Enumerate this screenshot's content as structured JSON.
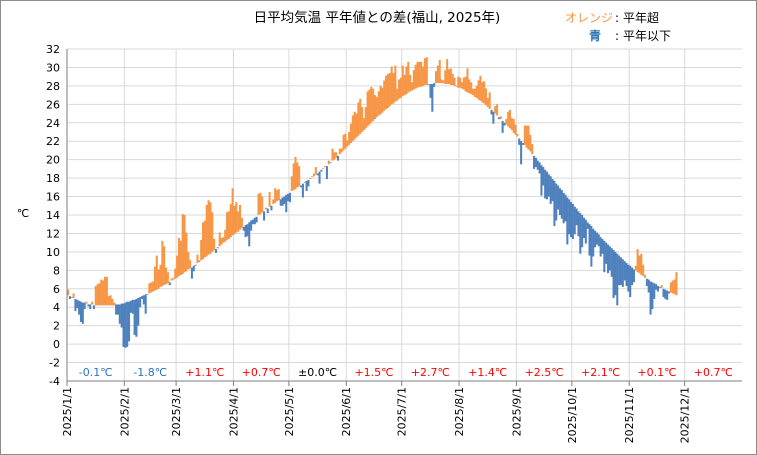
{
  "chart_data": {
    "type": "bar",
    "title": "日平均気温 平年値との差(福山, 2025年)",
    "ylabel": "℃",
    "ylim": [
      -4,
      32
    ],
    "yticks": [
      -4,
      -2,
      0,
      2,
      4,
      6,
      8,
      10,
      12,
      14,
      16,
      18,
      20,
      22,
      24,
      26,
      28,
      30,
      32
    ],
    "grid": "horizontal",
    "legend_position": "top-right",
    "legend": [
      {
        "label": "オレンジ",
        "meaning": "平年超",
        "color": "#f79646"
      },
      {
        "label": "青",
        "meaning": "平年以下",
        "color": "#4f81bd"
      }
    ],
    "legend_sep": ":",
    "month_labels": [
      "2025/1/1",
      "2025/2/1",
      "2025/3/1",
      "2025/4/1",
      "2025/5/1",
      "2025/6/1",
      "2025/7/1",
      "2025/8/1",
      "2025/9/1",
      "2025/10/1",
      "2025/11/1",
      "2025/12/1"
    ],
    "month_start_day": [
      1,
      32,
      60,
      91,
      121,
      152,
      182,
      213,
      244,
      274,
      305,
      335
    ],
    "days_in_year": 365,
    "monthly_anomaly": [
      {
        "label": "-0.1℃",
        "color": "#2e75b6"
      },
      {
        "label": "-1.8℃",
        "color": "#2e75b6"
      },
      {
        "label": "+1.1℃",
        "color": "#ff0000"
      },
      {
        "label": "+0.7℃",
        "color": "#ff0000"
      },
      {
        "label": "±0.0℃",
        "color": "#000000"
      },
      {
        "label": "+1.5℃",
        "color": "#ff0000"
      },
      {
        "label": "+2.7℃",
        "color": "#ff0000"
      },
      {
        "label": "+1.4℃",
        "color": "#ff0000"
      },
      {
        "label": "+2.5℃",
        "color": "#ff0000"
      },
      {
        "label": "+2.1℃",
        "color": "#ff0000"
      },
      {
        "label": "+0.1℃",
        "color": "#ff0000"
      },
      {
        "label": "+0.7℃",
        "color": "#ff0000"
      }
    ],
    "series": [
      {
        "name": "平年値",
        "values": [
          5.3,
          5.2,
          5.1,
          5.0,
          4.9,
          4.8,
          4.7,
          4.6,
          4.5,
          4.5,
          4.4,
          4.3,
          4.3,
          4.3,
          4.2,
          4.2,
          4.2,
          4.2,
          4.2,
          4.2,
          4.2,
          4.2,
          4.2,
          4.2,
          4.2,
          4.2,
          4.3,
          4.3,
          4.3,
          4.4,
          4.4,
          4.5,
          4.6,
          4.6,
          4.7,
          4.8,
          4.8,
          4.9,
          5.0,
          5.1,
          5.2,
          5.3,
          5.4,
          5.4,
          5.5,
          5.6,
          5.7,
          5.8,
          5.9,
          6.0,
          6.2,
          6.3,
          6.4,
          6.5,
          6.6,
          6.7,
          6.9,
          7.0,
          7.1,
          7.2,
          7.4,
          7.5,
          7.6,
          7.8,
          7.9,
          8.1,
          8.2,
          8.3,
          8.5,
          8.6,
          8.8,
          8.9,
          9.1,
          9.2,
          9.4,
          9.5,
          9.7,
          9.8,
          10.0,
          10.2,
          10.3,
          10.5,
          10.6,
          10.8,
          11.0,
          11.1,
          11.3,
          11.4,
          11.6,
          11.8,
          11.9,
          12.1,
          12.2,
          12.4,
          12.6,
          12.7,
          12.9,
          13.0,
          13.2,
          13.4,
          13.5,
          13.7,
          13.8,
          14.0,
          14.1,
          14.3,
          14.4,
          14.6,
          14.7,
          14.9,
          15.0,
          15.2,
          15.3,
          15.5,
          15.6,
          15.7,
          15.9,
          16.0,
          16.2,
          16.3,
          16.4,
          16.6,
          16.7,
          16.8,
          17.0,
          17.1,
          17.2,
          17.4,
          17.5,
          17.7,
          17.8,
          17.9,
          18.1,
          18.2,
          18.4,
          18.5,
          18.7,
          18.9,
          19.0,
          19.2,
          19.3,
          19.5,
          19.7,
          19.9,
          20.0,
          20.2,
          20.4,
          20.6,
          20.8,
          21.0,
          21.2,
          21.4,
          21.6,
          21.8,
          22.0,
          22.2,
          22.4,
          22.6,
          22.8,
          23.0,
          23.2,
          23.4,
          23.6,
          23.8,
          24.0,
          24.2,
          24.4,
          24.6,
          24.8,
          24.9,
          25.1,
          25.3,
          25.5,
          25.6,
          25.8,
          26.0,
          26.1,
          26.3,
          26.4,
          26.6,
          26.7,
          26.9,
          27.0,
          27.1,
          27.3,
          27.4,
          27.5,
          27.6,
          27.7,
          27.8,
          27.9,
          27.9,
          28.0,
          28.1,
          28.1,
          28.2,
          28.2,
          28.2,
          28.3,
          28.3,
          28.3,
          28.3,
          28.3,
          28.3,
          28.2,
          28.2,
          28.2,
          28.1,
          28.1,
          28.0,
          27.9,
          27.8,
          27.8,
          27.7,
          27.6,
          27.4,
          27.3,
          27.2,
          27.1,
          27.0,
          26.8,
          26.7,
          26.5,
          26.4,
          26.2,
          26.1,
          25.9,
          25.7,
          25.5,
          25.4,
          25.2,
          25.0,
          24.8,
          24.6,
          24.4,
          24.2,
          24.0,
          23.8,
          23.6,
          23.4,
          23.2,
          22.9,
          22.7,
          22.5,
          22.3,
          22.0,
          21.8,
          21.6,
          21.3,
          21.1,
          20.9,
          20.6,
          20.4,
          20.2,
          19.9,
          19.7,
          19.4,
          19.2,
          18.9,
          18.7,
          18.4,
          18.2,
          17.9,
          17.7,
          17.4,
          17.2,
          16.9,
          16.7,
          16.4,
          16.2,
          15.9,
          15.7,
          15.4,
          15.2,
          14.9,
          14.7,
          14.4,
          14.2,
          14.0,
          13.7,
          13.5,
          13.2,
          13.0,
          12.8,
          12.5,
          12.3,
          12.1,
          11.9,
          11.6,
          11.4,
          11.2,
          11.0,
          10.8,
          10.6,
          10.4,
          10.2,
          10.0,
          9.8,
          9.6,
          9.4,
          9.2,
          9.0,
          8.8,
          8.6,
          8.5,
          8.3,
          8.1,
          8.0,
          7.8,
          7.7,
          7.5,
          7.4,
          7.2,
          7.1,
          7.0,
          6.8,
          6.7,
          6.6,
          6.5,
          6.3,
          6.2,
          6.1,
          6.0,
          5.9,
          5.8,
          5.7,
          5.6,
          5.5,
          5.4,
          5.3
        ]
      },
      {
        "name": "日平均気温",
        "values": [
          5.9,
          4.9,
          5.1,
          5.5,
          3.6,
          3.9,
          3.2,
          2.4,
          2.2,
          3.8,
          4.6,
          4.1,
          3.8,
          4.6,
          3.8,
          6.3,
          6.5,
          6.6,
          7.0,
          6.9,
          7.3,
          7.3,
          5.2,
          5.3,
          4.9,
          4.5,
          3.2,
          3.2,
          2.2,
          1.8,
          -0.3,
          -0.4,
          -0.3,
          0.3,
          3.4,
          3.3,
          1.0,
          0.8,
          2.0,
          4.0,
          4.9,
          4.3,
          3.3,
          5.4,
          6.6,
          6.7,
          6.8,
          8.4,
          9.6,
          8.1,
          8.6,
          11.2,
          10.6,
          8.3,
          7.8,
          6.4,
          7.1,
          7.2,
          8.2,
          9.6,
          11.5,
          11.2,
          14.1,
          14.0,
          12.1,
          10.0,
          9.1,
          7.1,
          7.9,
          8.5,
          9.7,
          9.1,
          11.3,
          13.2,
          13.4,
          15.1,
          15.6,
          15.4,
          14.3,
          11.4,
          9.9,
          10.4,
          12.1,
          11.5,
          11.6,
          12.4,
          14.3,
          14.4,
          15.2,
          16.9,
          15.0,
          15.4,
          14.4,
          15.1,
          13.7,
          12.3,
          11.6,
          11.7,
          10.6,
          12.3,
          13.0,
          13.0,
          13.2,
          16.3,
          16.4,
          16.0,
          13.4,
          14.8,
          14.2,
          16.5,
          14.5,
          15.7,
          16.9,
          16.7,
          16.8,
          15.0,
          15.0,
          15.2,
          14.3,
          15.5,
          15.4,
          18.2,
          19.6,
          20.3,
          19.7,
          19.3,
          17.0,
          15.9,
          17.6,
          16.6,
          17.1,
          18.0,
          18.2,
          18.5,
          19.2,
          18.3,
          17.4,
          18.7,
          19.1,
          19.3,
          17.9,
          19.9,
          19.7,
          21.2,
          20.8,
          20.8,
          19.9,
          21.2,
          21.2,
          22.7,
          22.8,
          22.1,
          23.0,
          23.9,
          24.8,
          25.2,
          25.0,
          26.2,
          26.6,
          25.7,
          24.5,
          25.7,
          27.4,
          27.6,
          27.9,
          27.7,
          27.0,
          26.8,
          27.4,
          28.0,
          27.8,
          28.6,
          29.1,
          29.3,
          29.4,
          30.1,
          29.4,
          30.2,
          27.7,
          28.7,
          28.9,
          30.2,
          29.2,
          30.1,
          30.6,
          29.2,
          28.4,
          29.7,
          30.3,
          30.6,
          30.6,
          30.6,
          30.1,
          31.0,
          31.1,
          28.2,
          26.7,
          25.2,
          27.9,
          29.6,
          30.2,
          30.8,
          28.7,
          28.6,
          29.7,
          30.9,
          29.8,
          29.9,
          29.3,
          28.9,
          28.0,
          29.0,
          28.9,
          28.4,
          28.9,
          29.0,
          29.9,
          28.7,
          28.4,
          27.7,
          27.7,
          28.0,
          28.6,
          29.1,
          28.4,
          28.5,
          27.7,
          26.7,
          27.3,
          24.9,
          23.9,
          25.8,
          26.0,
          24.4,
          24.7,
          22.9,
          23.7,
          24.4,
          25.2,
          25.4,
          24.5,
          24.4,
          23.8,
          22.8,
          21.6,
          19.5,
          21.6,
          23.7,
          23.7,
          23.7,
          22.7,
          21.7,
          19.0,
          19.2,
          18.9,
          18.5,
          16.1,
          17.2,
          15.8,
          15.7,
          16.0,
          15.2,
          15.5,
          12.8,
          13.4,
          14.6,
          14.0,
          13.6,
          13.1,
          13.3,
          10.8,
          11.9,
          11.6,
          11.4,
          11.9,
          12.9,
          11.7,
          9.8,
          10.5,
          11.5,
          10.9,
          12.5,
          9.6,
          8.4,
          9.5,
          10.5,
          10.8,
          10.6,
          9.5,
          9.8,
          7.8,
          8.7,
          7.7,
          8.0,
          7.3,
          5.0,
          5.3,
          4.2,
          6.4,
          6.4,
          6.2,
          6.9,
          6.3,
          5.7,
          5.1,
          6.4,
          6.7,
          8.5,
          10.3,
          9.6,
          9.8,
          8.6,
          7.5,
          6.3,
          5.6,
          3.2,
          3.8,
          4.9,
          5.9,
          5.7,
          6.1,
          6.4,
          5.1,
          4.9,
          4.8,
          5.5,
          6.7,
          6.9,
          7.0,
          7.8,
          8.5,
          7.4,
          7.3,
          5.5,
          6.0,
          4.5,
          3.9,
          4.0,
          4.8,
          4.3,
          5.4,
          4.2,
          4.2,
          5.8,
          6.2,
          7.0,
          5.5,
          4.5,
          4.6,
          5.2,
          4.1,
          5.5,
          5.6,
          4.1,
          3.8,
          4.0,
          3.9,
          4.7,
          5.0,
          5.7,
          6.5,
          6.3,
          7.2,
          6.8
        ]
      }
    ]
  }
}
